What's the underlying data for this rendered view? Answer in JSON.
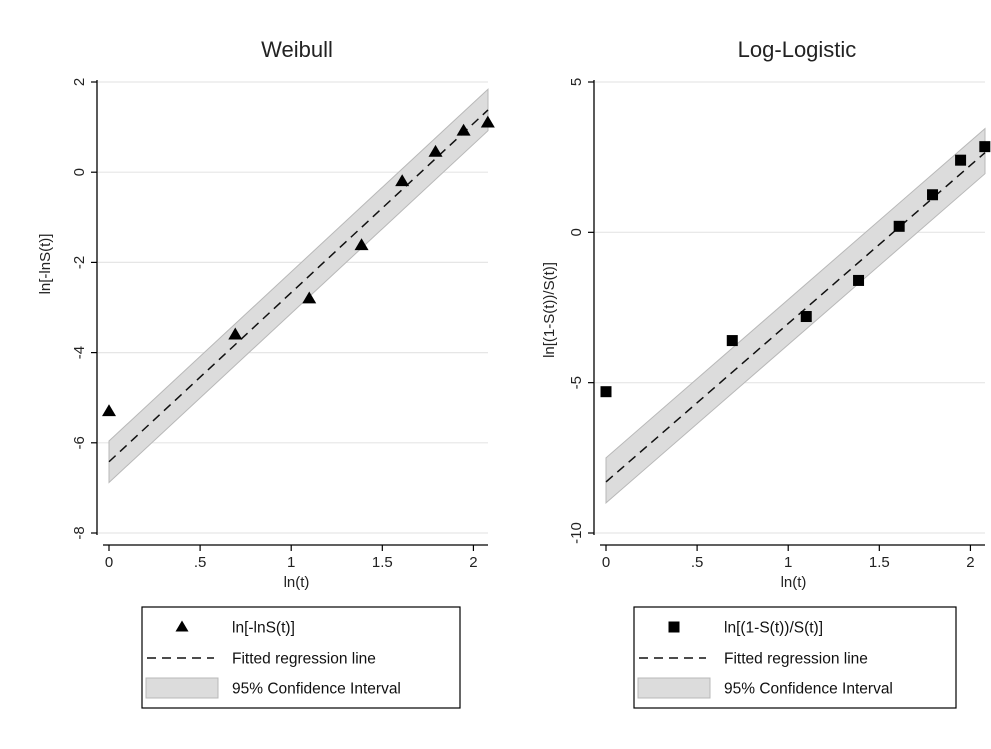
{
  "colors": {
    "grid": "#e6e6e6",
    "band": "#dcdcdc",
    "band_edge": "#b8b8b8",
    "axis": "#000000",
    "marker": "#000000"
  },
  "chart_data": [
    {
      "type": "scatter",
      "title": "Weibull",
      "xlabel": "ln(t)",
      "ylabel": "ln[-lnS(t)]",
      "xlim": [
        0,
        2.08
      ],
      "ylim": [
        -8,
        2
      ],
      "xticks": [
        "0",
        ".5",
        "1",
        "1.5",
        "2"
      ],
      "yticks": [
        "-8",
        "-6",
        "-4",
        "-2",
        "0",
        "2"
      ],
      "xtick_values": [
        0,
        0.5,
        1,
        1.5,
        2
      ],
      "ytick_values": [
        -8,
        -6,
        -4,
        -2,
        0,
        2
      ],
      "grid": true,
      "marker": "triangle",
      "points": [
        {
          "x": 0.0,
          "y": -5.3
        },
        {
          "x": 0.693,
          "y": -3.6
        },
        {
          "x": 1.099,
          "y": -2.8
        },
        {
          "x": 1.386,
          "y": -1.62
        },
        {
          "x": 1.609,
          "y": -0.2
        },
        {
          "x": 1.792,
          "y": 0.45
        },
        {
          "x": 1.946,
          "y": 0.92
        },
        {
          "x": 2.079,
          "y": 1.1
        }
      ],
      "fit_line": {
        "x": [
          0,
          2.08
        ],
        "y": [
          -6.42,
          1.38
        ]
      },
      "ci_band": {
        "x": [
          0,
          2.08
        ],
        "lower": [
          -6.88,
          0.92
        ],
        "upper": [
          -5.96,
          1.84
        ]
      },
      "legend": {
        "position": "bottom",
        "items": [
          "ln[-lnS(t)]",
          "Fitted regression line",
          "95% Confidence Interval"
        ]
      }
    },
    {
      "type": "scatter",
      "title": "Log-Logistic",
      "xlabel": "ln(t)",
      "ylabel": "ln[(1-S(t))/S(t)]",
      "xlim": [
        0,
        2.08
      ],
      "ylim": [
        -10,
        5
      ],
      "xticks": [
        "0",
        ".5",
        "1",
        "1.5",
        "2"
      ],
      "yticks": [
        "-10",
        "-5",
        "0",
        "5"
      ],
      "xtick_values": [
        0,
        0.5,
        1,
        1.5,
        2
      ],
      "ytick_values": [
        -10,
        -5,
        0,
        5
      ],
      "grid": true,
      "marker": "square",
      "points": [
        {
          "x": 0.0,
          "y": -5.3
        },
        {
          "x": 0.693,
          "y": -3.6
        },
        {
          "x": 1.099,
          "y": -2.8
        },
        {
          "x": 1.386,
          "y": -1.6
        },
        {
          "x": 1.609,
          "y": 0.2
        },
        {
          "x": 1.792,
          "y": 1.25
        },
        {
          "x": 1.946,
          "y": 2.4
        },
        {
          "x": 2.079,
          "y": 2.85
        }
      ],
      "fit_line": {
        "x": [
          0,
          2.08
        ],
        "y": [
          -8.3,
          2.65
        ]
      },
      "ci_band": {
        "x": [
          0,
          2.08
        ],
        "lower": [
          -9.0,
          1.95
        ],
        "upper": [
          -7.5,
          3.45
        ]
      },
      "legend": {
        "position": "bottom",
        "items": [
          "ln[(1-S(t))/S(t)]",
          "Fitted regression line",
          "95% Confidence Interval"
        ]
      }
    }
  ]
}
